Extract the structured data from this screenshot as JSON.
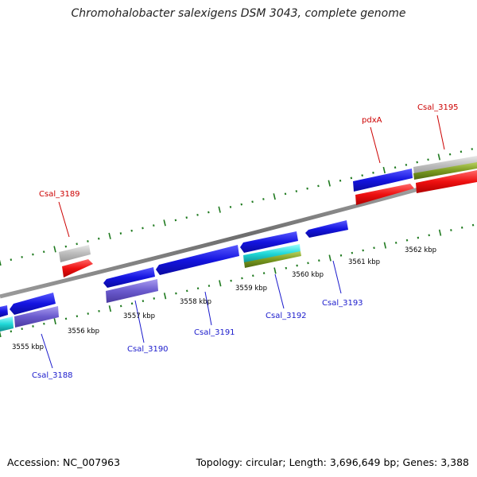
{
  "title": "Chromohalobacter salexigens DSM 3043, complete genome",
  "footer": {
    "accession": "Accession: NC_007963",
    "stats": "Topology: circular; Length: 3,696,649 bp; Genes: 3,388"
  },
  "colors": {
    "backbone": "#7a7a7a",
    "tick": "#1f7a1f",
    "label_forward": "#cc0000",
    "label_reverse": "#1a1acc",
    "cds_blue": "#1616e0",
    "cds_red": "#ee1010",
    "cds_grey": "#bbbbbb",
    "cds_cyan": "#20d8d8",
    "cds_purple": "#6a5acd",
    "cds_olive": "#7a9a20"
  },
  "kbp_labels": [
    "3555 kbp",
    "3556 kbp",
    "3557 kbp",
    "3558 kbp",
    "3559 kbp",
    "3560 kbp",
    "3561 kbp",
    "3562 kbp"
  ],
  "gene_labels": {
    "forward": [
      "Csal_3189",
      "pdxA",
      "Csal_3195"
    ],
    "reverse": [
      "Csal_3188",
      "Csal_3190",
      "Csal_3191",
      "Csal_3192",
      "Csal_3193"
    ]
  }
}
